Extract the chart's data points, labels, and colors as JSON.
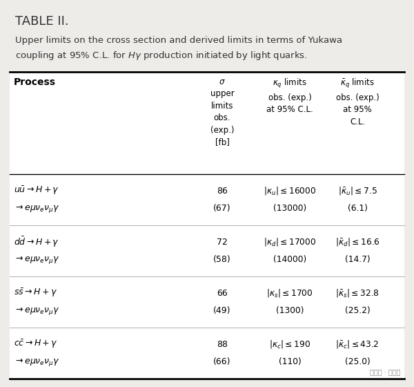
{
  "title": "TABLE II.",
  "caption_line1": "Upper limits on the cross section and derived limits in terms of Yukawa",
  "caption_line2": "coupling at 95% C.L. for $H\\gamma$ production initiated by light quarks.",
  "bg_color": "#eeece9",
  "table_bg": "#ffffff",
  "rows": [
    {
      "process_line1": "$u\\bar{u} \\rightarrow H + \\gamma$",
      "process_line2": "$\\rightarrow e\\mu\\nu_e\\nu_{\\mu}\\gamma$",
      "sigma_obs": "86",
      "sigma_exp": "(67)",
      "kappa_obs": "$|\\kappa_u| \\leq 16000$",
      "kappa_exp": "(13000)",
      "kappa_bar_obs": "$|\\bar{\\kappa}_u| \\leq 7.5$",
      "kappa_bar_exp": "(6.1)"
    },
    {
      "process_line1": "$d\\bar{d} \\rightarrow H + \\gamma$",
      "process_line2": "$\\rightarrow e\\mu\\nu_e\\nu_{\\mu}\\gamma$",
      "sigma_obs": "72",
      "sigma_exp": "(58)",
      "kappa_obs": "$|\\kappa_d| \\leq 17000$",
      "kappa_exp": "(14000)",
      "kappa_bar_obs": "$|\\bar{\\kappa}_d| \\leq 16.6$",
      "kappa_bar_exp": "(14.7)"
    },
    {
      "process_line1": "$s\\bar{s} \\rightarrow H + \\gamma$",
      "process_line2": "$\\rightarrow e\\mu\\nu_e\\nu_{\\mu}\\gamma$",
      "sigma_obs": "66",
      "sigma_exp": "(49)",
      "kappa_obs": "$|\\kappa_s| \\leq 1700$",
      "kappa_exp": "(1300)",
      "kappa_bar_obs": "$|\\bar{\\kappa}_s| \\leq 32.8$",
      "kappa_bar_exp": "(25.2)"
    },
    {
      "process_line1": "$c\\bar{c} \\rightarrow H + \\gamma$",
      "process_line2": "$\\rightarrow e\\mu\\nu_e\\nu_{\\mu}\\gamma$",
      "sigma_obs": "88",
      "sigma_exp": "(66)",
      "kappa_obs": "$|\\kappa_c| \\leq 190$",
      "kappa_exp": "(110)",
      "kappa_bar_obs": "$|\\bar{\\kappa}_c| \\leq 43.2$",
      "kappa_bar_exp": "(25.0)"
    }
  ],
  "watermark": "公众号 · 量子位"
}
